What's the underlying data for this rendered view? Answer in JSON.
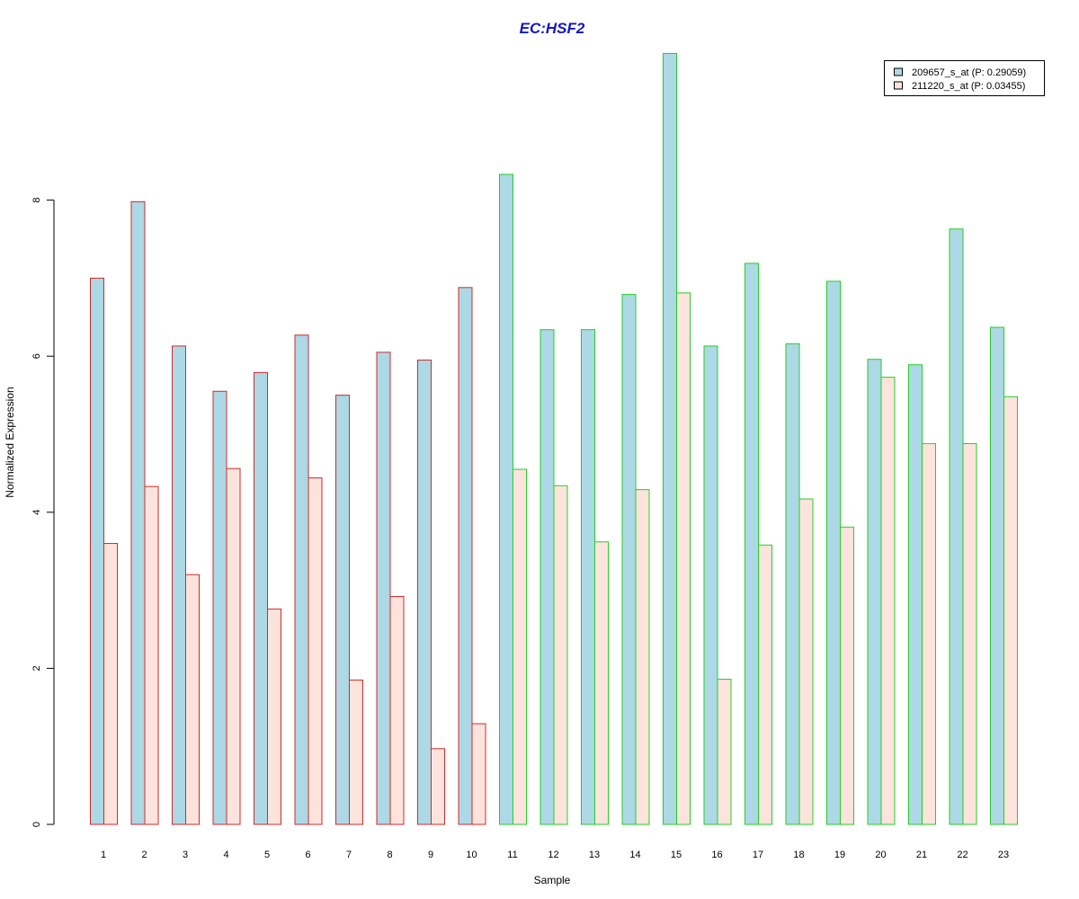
{
  "chart_data": {
    "type": "bar",
    "title": "EC:HSF2",
    "title_color": "#1515C8",
    "xlabel": "Sample",
    "ylabel": "Normalized Expression",
    "ylim": [
      0,
      10
    ],
    "yticks": [
      0,
      2,
      4,
      6,
      8
    ],
    "grid": false,
    "legend_position": "top-right",
    "categories": [
      "1",
      "2",
      "3",
      "4",
      "5",
      "6",
      "7",
      "8",
      "9",
      "10",
      "11",
      "12",
      "13",
      "14",
      "15",
      "16",
      "17",
      "18",
      "19",
      "20",
      "21",
      "22",
      "23"
    ],
    "group_border_colors": [
      "#D62728",
      "#D62728",
      "#D62728",
      "#D62728",
      "#D62728",
      "#D62728",
      "#D62728",
      "#D62728",
      "#D62728",
      "#D62728",
      "#22D022",
      "#22D022",
      "#22D022",
      "#22D022",
      "#22D022",
      "#22D022",
      "#22D022",
      "#22D022",
      "#22D022",
      "#22D022",
      "#22D022",
      "#22D022",
      "#22D022"
    ],
    "series": [
      {
        "name": "209657_s_at (P: 0.29059)",
        "fill": "#ADD8E6",
        "values": [
          7.0,
          7.98,
          6.13,
          5.55,
          5.79,
          6.27,
          5.5,
          6.05,
          5.95,
          6.88,
          8.33,
          6.34,
          6.34,
          6.79,
          9.88,
          6.13,
          7.19,
          6.16,
          6.96,
          5.96,
          5.89,
          7.63,
          6.37
        ]
      },
      {
        "name": "211220_s_at (P: 0.03455)",
        "fill": "#FCE4DC",
        "values": [
          3.6,
          4.33,
          3.2,
          4.56,
          2.76,
          4.44,
          1.85,
          2.92,
          0.97,
          1.29,
          4.55,
          4.34,
          3.62,
          4.29,
          6.81,
          1.86,
          3.58,
          4.17,
          3.81,
          5.73,
          4.88,
          4.88,
          5.48
        ]
      }
    ]
  }
}
